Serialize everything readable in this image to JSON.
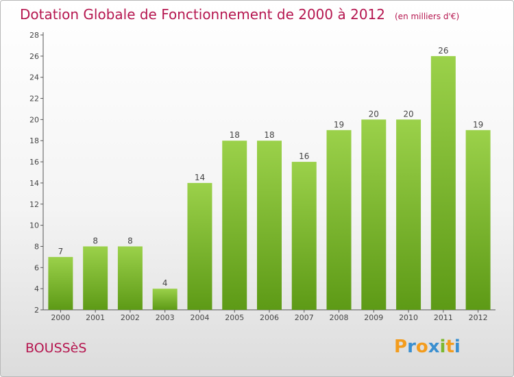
{
  "header": {
    "title": "Dotation Globale de Fonctionnement de 2000 à 2012",
    "unit": "(en milliers d'€)"
  },
  "footer": {
    "town": "BOUSSèS",
    "logo_text": "Proxiti",
    "logo_letters": [
      "P",
      "r",
      "o",
      "x",
      "i",
      "t",
      "i"
    ],
    "logo_colors": [
      "#f39c1d",
      "#3a8fd0",
      "#f39c1d",
      "#3a8fd0",
      "#7cb82f",
      "#f39c1d",
      "#3a8fd0"
    ]
  },
  "colors": {
    "accent": "#b5164f",
    "bar_top": "#9bd14a",
    "bar_bottom": "#5d9a16",
    "axis": "#555555"
  },
  "chart_data": {
    "type": "bar",
    "title": "Dotation Globale de Fonctionnement de 2000 à 2012",
    "unit": "(en milliers d'€)",
    "categories": [
      "2000",
      "2001",
      "2002",
      "2003",
      "2004",
      "2005",
      "2006",
      "2007",
      "2008",
      "2009",
      "2010",
      "2011",
      "2012"
    ],
    "values": [
      7,
      8,
      8,
      4,
      14,
      18,
      18,
      16,
      19,
      20,
      20,
      26,
      19
    ],
    "ylim": [
      2,
      28
    ],
    "yticks": [
      2,
      4,
      6,
      8,
      10,
      12,
      14,
      16,
      18,
      20,
      22,
      24,
      26,
      28
    ],
    "grid": false,
    "legend": "none"
  }
}
